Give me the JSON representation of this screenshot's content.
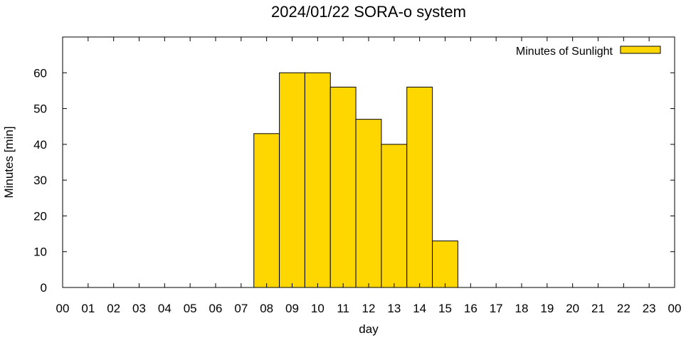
{
  "chart_data": {
    "type": "bar",
    "title": "2024/01/22 SORA-o system",
    "xlabel": "day",
    "ylabel": "Minutes [min]",
    "categories": [
      "00",
      "01",
      "02",
      "03",
      "04",
      "05",
      "06",
      "07",
      "08",
      "09",
      "10",
      "11",
      "12",
      "13",
      "14",
      "15",
      "16",
      "17",
      "18",
      "19",
      "20",
      "21",
      "22",
      "23"
    ],
    "x_tick_labels": [
      "00",
      "01",
      "02",
      "03",
      "04",
      "05",
      "06",
      "07",
      "08",
      "09",
      "10",
      "11",
      "12",
      "13",
      "14",
      "15",
      "16",
      "17",
      "18",
      "19",
      "20",
      "21",
      "22",
      "23",
      "00"
    ],
    "series": [
      {
        "name": "Minutes of Sunlight",
        "values": [
          0,
          0,
          0,
          0,
          0,
          0,
          0,
          0,
          43,
          60,
          60,
          56,
          47,
          40,
          56,
          13,
          0,
          0,
          0,
          0,
          0,
          0,
          0,
          0
        ]
      }
    ],
    "ylim": [
      0,
      70
    ],
    "y_ticks": [
      0,
      10,
      20,
      30,
      40,
      50,
      60
    ],
    "grid": false,
    "legend": "top-right",
    "colors": {
      "bar_fill": "#ffd700",
      "bar_stroke": "#000000"
    }
  }
}
